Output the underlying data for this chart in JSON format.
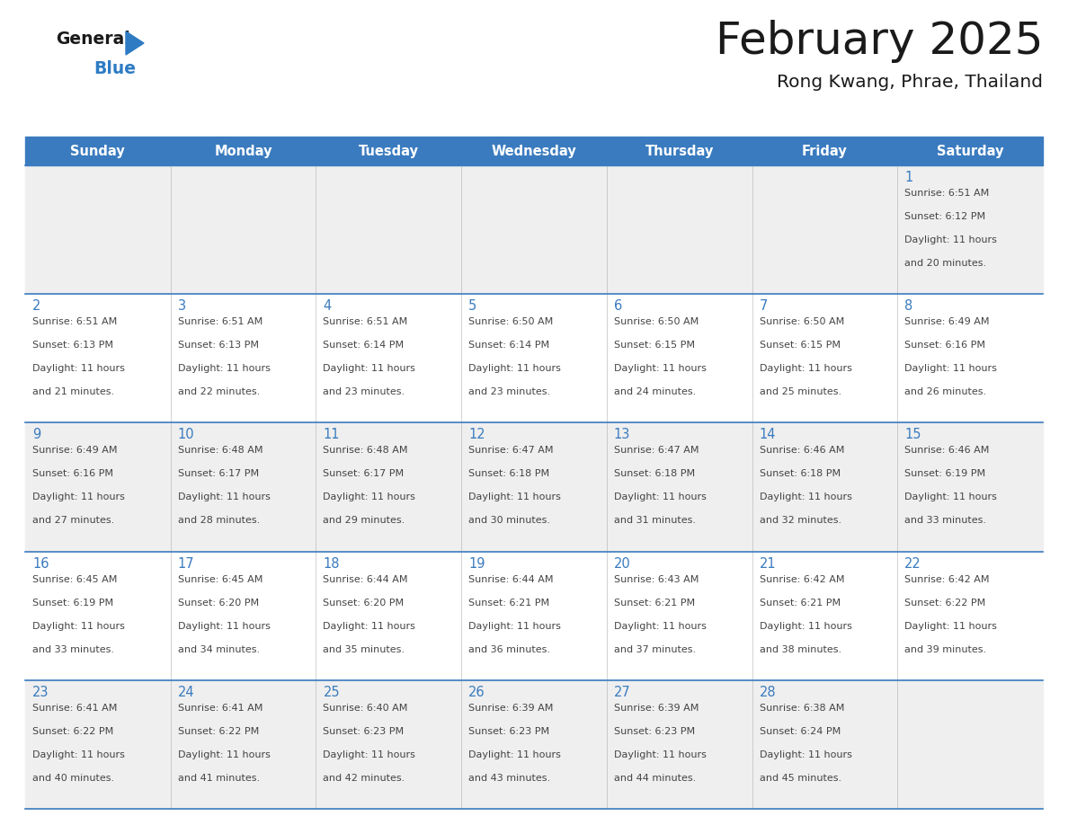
{
  "title": "February 2025",
  "subtitle": "Rong Kwang, Phrae, Thailand",
  "days_of_week": [
    "Sunday",
    "Monday",
    "Tuesday",
    "Wednesday",
    "Thursday",
    "Friday",
    "Saturday"
  ],
  "header_bg": "#3a7bbf",
  "header_text": "#ffffff",
  "row_bg_odd": "#efefef",
  "row_bg_even": "#ffffff",
  "cell_border": "#3a7bbf",
  "day_number_color": "#3a7bbf",
  "info_text_color": "#444444",
  "title_color": "#1a1a1a",
  "calendar_data": [
    [
      null,
      null,
      null,
      null,
      null,
      null,
      {
        "day": 1,
        "sunrise": "6:51 AM",
        "sunset": "6:12 PM",
        "daylight": "11 hours and 20 minutes."
      }
    ],
    [
      {
        "day": 2,
        "sunrise": "6:51 AM",
        "sunset": "6:13 PM",
        "daylight": "11 hours and 21 minutes."
      },
      {
        "day": 3,
        "sunrise": "6:51 AM",
        "sunset": "6:13 PM",
        "daylight": "11 hours and 22 minutes."
      },
      {
        "day": 4,
        "sunrise": "6:51 AM",
        "sunset": "6:14 PM",
        "daylight": "11 hours and 23 minutes."
      },
      {
        "day": 5,
        "sunrise": "6:50 AM",
        "sunset": "6:14 PM",
        "daylight": "11 hours and 23 minutes."
      },
      {
        "day": 6,
        "sunrise": "6:50 AM",
        "sunset": "6:15 PM",
        "daylight": "11 hours and 24 minutes."
      },
      {
        "day": 7,
        "sunrise": "6:50 AM",
        "sunset": "6:15 PM",
        "daylight": "11 hours and 25 minutes."
      },
      {
        "day": 8,
        "sunrise": "6:49 AM",
        "sunset": "6:16 PM",
        "daylight": "11 hours and 26 minutes."
      }
    ],
    [
      {
        "day": 9,
        "sunrise": "6:49 AM",
        "sunset": "6:16 PM",
        "daylight": "11 hours and 27 minutes."
      },
      {
        "day": 10,
        "sunrise": "6:48 AM",
        "sunset": "6:17 PM",
        "daylight": "11 hours and 28 minutes."
      },
      {
        "day": 11,
        "sunrise": "6:48 AM",
        "sunset": "6:17 PM",
        "daylight": "11 hours and 29 minutes."
      },
      {
        "day": 12,
        "sunrise": "6:47 AM",
        "sunset": "6:18 PM",
        "daylight": "11 hours and 30 minutes."
      },
      {
        "day": 13,
        "sunrise": "6:47 AM",
        "sunset": "6:18 PM",
        "daylight": "11 hours and 31 minutes."
      },
      {
        "day": 14,
        "sunrise": "6:46 AM",
        "sunset": "6:18 PM",
        "daylight": "11 hours and 32 minutes."
      },
      {
        "day": 15,
        "sunrise": "6:46 AM",
        "sunset": "6:19 PM",
        "daylight": "11 hours and 33 minutes."
      }
    ],
    [
      {
        "day": 16,
        "sunrise": "6:45 AM",
        "sunset": "6:19 PM",
        "daylight": "11 hours and 33 minutes."
      },
      {
        "day": 17,
        "sunrise": "6:45 AM",
        "sunset": "6:20 PM",
        "daylight": "11 hours and 34 minutes."
      },
      {
        "day": 18,
        "sunrise": "6:44 AM",
        "sunset": "6:20 PM",
        "daylight": "11 hours and 35 minutes."
      },
      {
        "day": 19,
        "sunrise": "6:44 AM",
        "sunset": "6:21 PM",
        "daylight": "11 hours and 36 minutes."
      },
      {
        "day": 20,
        "sunrise": "6:43 AM",
        "sunset": "6:21 PM",
        "daylight": "11 hours and 37 minutes."
      },
      {
        "day": 21,
        "sunrise": "6:42 AM",
        "sunset": "6:21 PM",
        "daylight": "11 hours and 38 minutes."
      },
      {
        "day": 22,
        "sunrise": "6:42 AM",
        "sunset": "6:22 PM",
        "daylight": "11 hours and 39 minutes."
      }
    ],
    [
      {
        "day": 23,
        "sunrise": "6:41 AM",
        "sunset": "6:22 PM",
        "daylight": "11 hours and 40 minutes."
      },
      {
        "day": 24,
        "sunrise": "6:41 AM",
        "sunset": "6:22 PM",
        "daylight": "11 hours and 41 minutes."
      },
      {
        "day": 25,
        "sunrise": "6:40 AM",
        "sunset": "6:23 PM",
        "daylight": "11 hours and 42 minutes."
      },
      {
        "day": 26,
        "sunrise": "6:39 AM",
        "sunset": "6:23 PM",
        "daylight": "11 hours and 43 minutes."
      },
      {
        "day": 27,
        "sunrise": "6:39 AM",
        "sunset": "6:23 PM",
        "daylight": "11 hours and 44 minutes."
      },
      {
        "day": 28,
        "sunrise": "6:38 AM",
        "sunset": "6:24 PM",
        "daylight": "11 hours and 45 minutes."
      },
      null
    ]
  ],
  "logo_general_color": "#1a1a1a",
  "logo_blue_color": "#2e7bc4",
  "logo_triangle_color": "#2e7bc4",
  "figwidth": 11.88,
  "figheight": 9.18,
  "dpi": 100
}
